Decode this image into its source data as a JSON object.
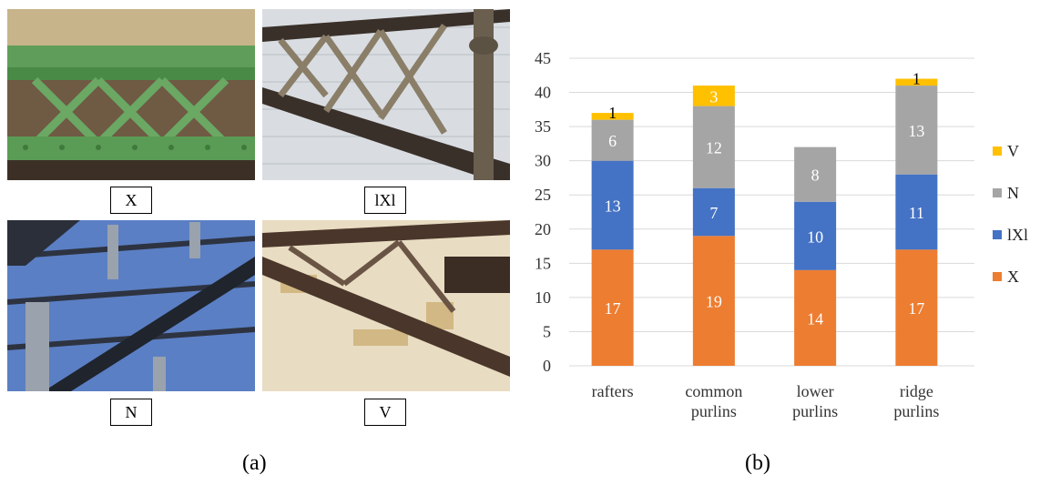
{
  "panel_a": {
    "caption": "(a)",
    "photos": [
      {
        "label": "X",
        "icon": "green-x-bracing-photo"
      },
      {
        "label": "lXl",
        "icon": "beige-lxl-bracing-photo"
      },
      {
        "label": "N",
        "icon": "blue-sky-n-bracing-photo"
      },
      {
        "label": "V",
        "icon": "brown-v-bracing-photo"
      }
    ]
  },
  "panel_b": {
    "caption": "(b)"
  },
  "chart_data": {
    "type": "bar",
    "stacked": true,
    "categories": [
      "rafters",
      "common purlins",
      "lower purlins",
      "ridge purlins"
    ],
    "series": [
      {
        "name": "X",
        "color": "#ED7D31",
        "values": [
          17,
          19,
          14,
          17
        ]
      },
      {
        "name": "lXl",
        "color": "#4472C4",
        "values": [
          13,
          7,
          10,
          11
        ]
      },
      {
        "name": "N",
        "color": "#A5A5A5",
        "values": [
          6,
          12,
          8,
          13
        ]
      },
      {
        "name": "V",
        "color": "#FFC000",
        "values": [
          1,
          3,
          0,
          1
        ]
      }
    ],
    "ylim": [
      0,
      45
    ],
    "yticks": [
      0,
      5,
      10,
      15,
      20,
      25,
      30,
      35,
      40,
      45
    ],
    "grid": true,
    "legend": "right"
  }
}
